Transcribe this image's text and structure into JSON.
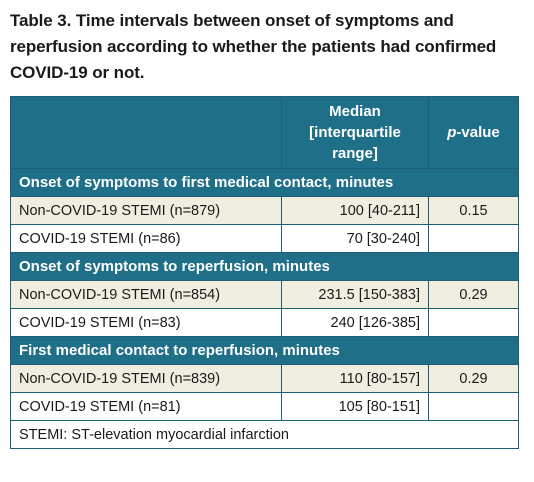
{
  "caption": {
    "line1": "Table 3. Time intervals between onset of symptoms and",
    "line2": "reperfusion according to whether the patients had confirmed",
    "line3": "COVID-19 or not."
  },
  "header": {
    "col1": "",
    "col2_line1": "Median",
    "col2_line2": "[interquartile",
    "col2_line3": "range]",
    "col3_italic": "p",
    "col3_rest": "-value"
  },
  "sections": [
    {
      "title": "Onset of symptoms to first medical contact, minutes",
      "rows": [
        {
          "label": "Non-COVID-19 STEMI (n=879)",
          "median": "100 [40-211]",
          "p": "0.15"
        },
        {
          "label": "COVID-19 STEMI (n=86)",
          "median": "70 [30-240]",
          "p": ""
        }
      ]
    },
    {
      "title": "Onset of symptoms to reperfusion, minutes",
      "rows": [
        {
          "label": "Non-COVID-19 STEMI (n=854)",
          "median": "231.5 [150-383]",
          "p": "0.29"
        },
        {
          "label": "COVID-19 STEMI (n=83)",
          "median": "240 [126-385]",
          "p": ""
        }
      ]
    },
    {
      "title": "First medical contact to reperfusion, minutes",
      "rows": [
        {
          "label": "Non-COVID-19 STEMI (n=839)",
          "median": "110 [80-157]",
          "p": "0.29"
        },
        {
          "label": "COVID-19 STEMI (n=81)",
          "median": "105 [80-151]",
          "p": ""
        }
      ]
    }
  ],
  "footnote": "STEMI: ST-elevation myocardial infarction",
  "colors": {
    "header_bg": "#1f6f88",
    "shaded_row": "#efeee1",
    "border": "#1f5f73"
  }
}
